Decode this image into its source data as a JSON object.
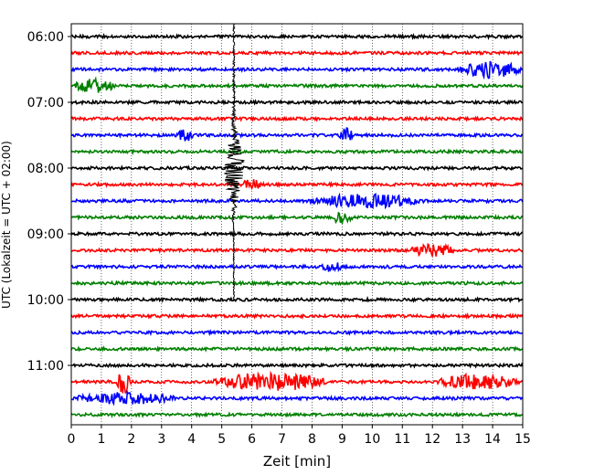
{
  "chart_data": {
    "type": "line",
    "chart_kind": "helicorder seismogram",
    "xlabel": "Zeit  [min]",
    "ylabel": "UTC (Lokalzeit = UTC + 02:00)",
    "xlim": [
      0,
      15
    ],
    "x_ticks": [
      "0",
      "1",
      "2",
      "3",
      "4",
      "5",
      "6",
      "7",
      "8",
      "9",
      "10",
      "11",
      "12",
      "13",
      "14",
      "15"
    ],
    "y_tick_labels": [
      "06:00",
      "07:00",
      "08:00",
      "09:00",
      "10:00",
      "11:00"
    ],
    "trace_start_times": [
      "06:00",
      "06:15",
      "06:30",
      "06:45",
      "07:00",
      "07:15",
      "07:30",
      "07:45",
      "08:00",
      "08:15",
      "08:30",
      "08:45",
      "09:00",
      "09:15",
      "09:30",
      "09:45",
      "10:00",
      "10:15",
      "10:30",
      "10:45",
      "11:00",
      "11:15",
      "11:30",
      "11:45"
    ],
    "trace_minutes_per_line": 15,
    "trace_colors": [
      "#000000",
      "#ff0000",
      "#0000ff",
      "#008000"
    ],
    "grid": "vertical dotted lines at each minute",
    "event": {
      "onset_minute": 5.4,
      "peak_trace_time": "08:00",
      "visible_from": "06:00",
      "visible_to": "10:00"
    },
    "noise_bursts": [
      {
        "trace": "06:30",
        "start_min": 12.8,
        "end_min": 15.0,
        "level": 0.45
      },
      {
        "trace": "06:45",
        "start_min": 0.0,
        "end_min": 1.5,
        "level": 0.35
      },
      {
        "trace": "07:30",
        "start_min": 3.5,
        "end_min": 4.2,
        "level": 0.35
      },
      {
        "trace": "07:30",
        "start_min": 8.9,
        "end_min": 9.4,
        "level": 0.35
      },
      {
        "trace": "08:15",
        "start_min": 5.6,
        "end_min": 6.4,
        "level": 0.25
      },
      {
        "trace": "08:30",
        "start_min": 7.8,
        "end_min": 11.8,
        "level": 0.35
      },
      {
        "trace": "08:45",
        "start_min": 8.6,
        "end_min": 9.4,
        "level": 0.3
      },
      {
        "trace": "09:15",
        "start_min": 11.2,
        "end_min": 12.8,
        "level": 0.3
      },
      {
        "trace": "09:30",
        "start_min": 8.3,
        "end_min": 9.0,
        "level": 0.25
      },
      {
        "trace": "11:15",
        "start_min": 1.5,
        "end_min": 2.0,
        "level": 0.7
      },
      {
        "trace": "11:15",
        "start_min": 4.6,
        "end_min": 8.6,
        "level": 0.5
      },
      {
        "trace": "11:15",
        "start_min": 12.0,
        "end_min": 15.0,
        "level": 0.4
      },
      {
        "trace": "11:30",
        "start_min": 0.0,
        "end_min": 3.6,
        "level": 0.3
      }
    ]
  }
}
